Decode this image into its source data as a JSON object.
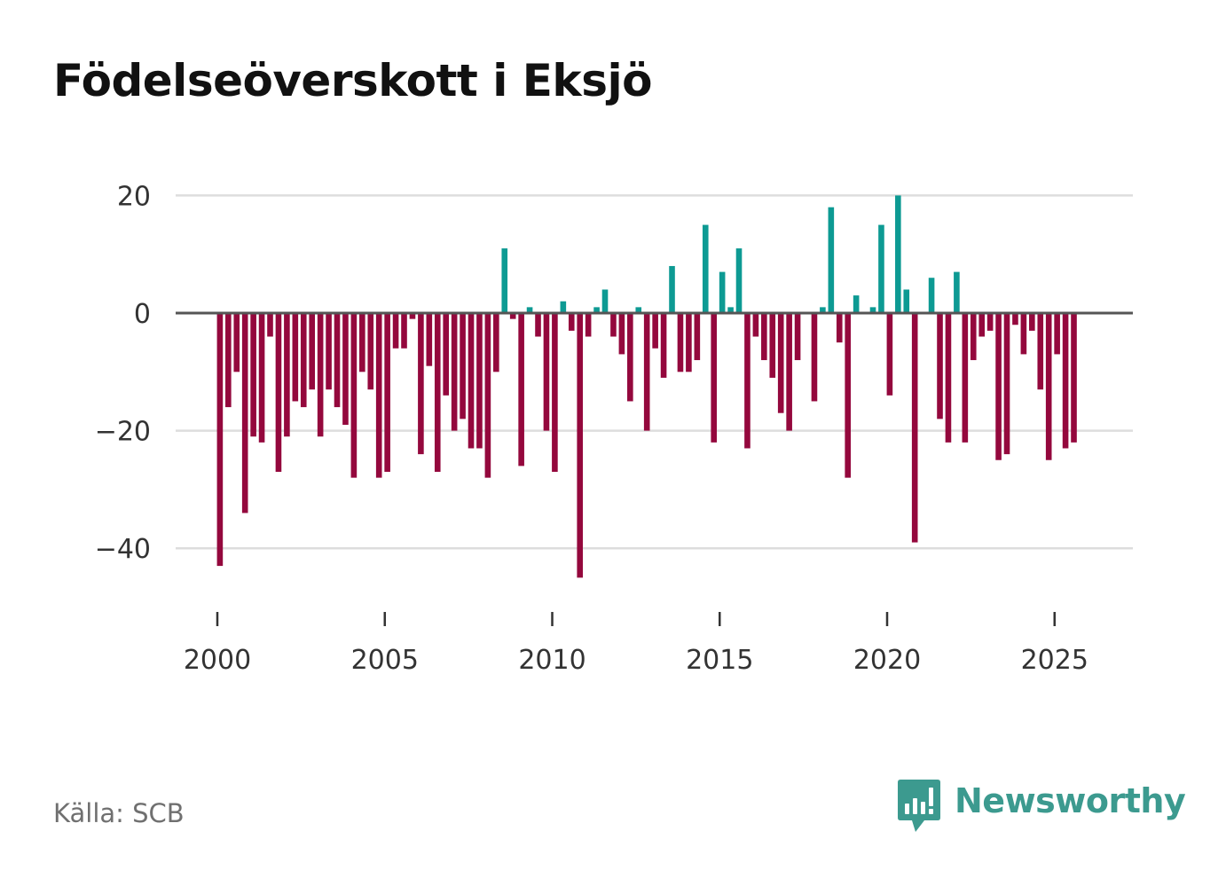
{
  "title": "Födelseöverskott i Eksjö",
  "source": "Källa: SCB",
  "brand": {
    "name": "Newsworthy",
    "icon": "newsworthy-logo-icon",
    "color": "#3c9a8f"
  },
  "colors": {
    "positive": "#0d9a93",
    "negative": "#94083d",
    "grid": "#dddddd",
    "zero": "#555555"
  },
  "chart_data": {
    "type": "bar",
    "title": "Födelseöverskott i Eksjö",
    "xlabel": "",
    "ylabel": "",
    "frequency": "quarterly",
    "start": 2000,
    "ylim": [
      -50,
      20
    ],
    "yticks": [
      20,
      0,
      -20,
      -40
    ],
    "ytick_labels": [
      "20",
      "0",
      "−20",
      "−40"
    ],
    "xticks": [
      2000,
      2005,
      2010,
      2015,
      2020,
      2025
    ],
    "xtick_labels": [
      "2000",
      "2005",
      "2010",
      "2015",
      "2020",
      "2025"
    ],
    "grid": true,
    "values": [
      -43,
      -16,
      -10,
      -34,
      -21,
      -22,
      -4,
      -27,
      -21,
      -15,
      -16,
      -13,
      -21,
      -13,
      -16,
      -19,
      -28,
      -10,
      -13,
      -28,
      -27,
      -6,
      -6,
      -1,
      -24,
      -9,
      -27,
      -14,
      -20,
      -18,
      -23,
      -23,
      -28,
      -10,
      11,
      -1,
      -26,
      1,
      -4,
      -20,
      -27,
      2,
      -3,
      -45,
      -4,
      1,
      4,
      -4,
      -7,
      -15,
      1,
      -20,
      -6,
      -11,
      8,
      -10,
      -10,
      -8,
      15,
      -22,
      7,
      1,
      11,
      -23,
      -4,
      -8,
      -11,
      -17,
      -20,
      -8,
      0,
      -15,
      1,
      18,
      -5,
      -28,
      3,
      0,
      1,
      15,
      -14,
      20,
      4,
      -39,
      0,
      6,
      -18,
      -22,
      7,
      -22,
      -8,
      -4,
      -3,
      -25,
      -24,
      -2,
      -7,
      -3,
      -13,
      -25,
      -7,
      -23,
      -22
    ]
  }
}
